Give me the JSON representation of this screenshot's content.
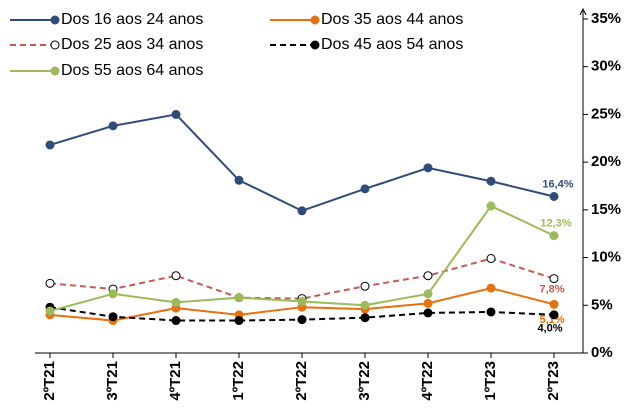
{
  "chart_data": {
    "type": "line",
    "categories": [
      "2ºT21",
      "3ºT21",
      "4ºT21",
      "1ºT22",
      "2ºT22",
      "3ºT22",
      "4ºT22",
      "1ºT23",
      "2ºT23"
    ],
    "series": [
      {
        "name": "Dos 16 aos 24 anos",
        "color": "#2f4b7c",
        "dashed": false,
        "hollow": false,
        "values": [
          21.8,
          23.8,
          25.0,
          18.1,
          14.9,
          17.2,
          19.4,
          18.0,
          16.4
        ],
        "value_labels": [
          null,
          null,
          null,
          null,
          null,
          null,
          null,
          null,
          "16,4%"
        ]
      },
      {
        "name": "Dos 35 aos 44 anos",
        "color": "#e8700f",
        "dashed": false,
        "hollow": false,
        "values": [
          4.0,
          3.4,
          4.7,
          4.0,
          4.8,
          4.6,
          5.2,
          6.8,
          5.1
        ],
        "value_labels": [
          null,
          null,
          null,
          null,
          null,
          null,
          null,
          null,
          "5,1%"
        ]
      },
      {
        "name": "Dos 25 aos 34 anos",
        "color": "#c55a50",
        "dashed": true,
        "hollow": true,
        "values": [
          7.3,
          6.7,
          8.1,
          5.8,
          5.7,
          7.0,
          8.1,
          9.9,
          7.8
        ],
        "value_labels": [
          null,
          null,
          null,
          null,
          null,
          null,
          null,
          null,
          "7,8%"
        ]
      },
      {
        "name": "Dos 45 aos 54 anos",
        "color": "#000000",
        "dashed": true,
        "hollow": false,
        "values": [
          4.8,
          3.8,
          3.4,
          3.4,
          3.5,
          3.7,
          4.2,
          4.3,
          4.0
        ],
        "value_labels": [
          null,
          null,
          null,
          null,
          null,
          null,
          null,
          null,
          "4,0%"
        ]
      },
      {
        "name": "Dos 55 aos 64 anos",
        "color": "#9bbb59",
        "dashed": false,
        "hollow": false,
        "values": [
          4.4,
          6.2,
          5.3,
          5.8,
          5.4,
          5.0,
          6.2,
          15.4,
          12.3
        ],
        "value_labels": [
          null,
          null,
          null,
          null,
          null,
          null,
          null,
          null,
          "12,3%"
        ]
      }
    ],
    "ylim": [
      0,
      35
    ],
    "yticks": [
      {
        "value": 0,
        "label": "0%"
      },
      {
        "value": 5,
        "label": "5%"
      },
      {
        "value": 10,
        "label": "10%"
      },
      {
        "value": 15,
        "label": "15%"
      },
      {
        "value": 20,
        "label": "20%"
      },
      {
        "value": 25,
        "label": "25%"
      },
      {
        "value": 30,
        "label": "30%"
      },
      {
        "value": 35,
        "label": "35%"
      }
    ],
    "y_axis_side": "right",
    "legend": "top-left",
    "grid": false
  }
}
